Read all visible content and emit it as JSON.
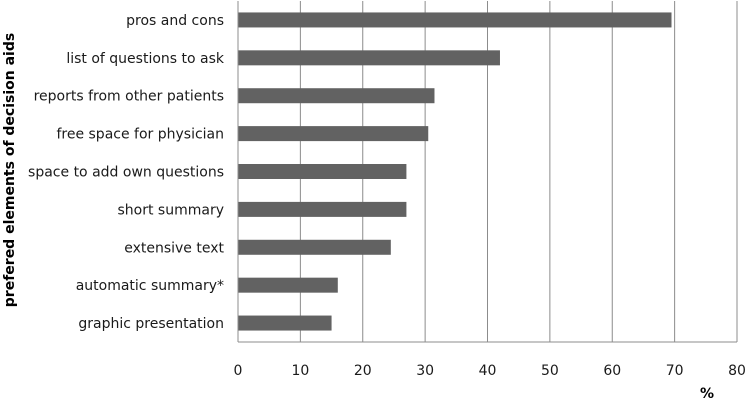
{
  "chart_data": {
    "type": "bar",
    "orientation": "horizontal",
    "categories": [
      "pros and cons",
      "list of questions to ask",
      "reports from other patients",
      "free space for physician",
      "space to add own questions",
      "short summary",
      "extensive text",
      "automatic summary*",
      "graphic presentation"
    ],
    "values": [
      69.5,
      42,
      31.5,
      30.5,
      27,
      27,
      24.5,
      16,
      15
    ],
    "xlabel": "%",
    "ylabel": "prefered elements of decision aids",
    "xlim": [
      0,
      80
    ],
    "xticks": [
      "0",
      "10",
      "20",
      "30",
      "40",
      "50",
      "60",
      "70",
      "80"
    ],
    "grid": "vertical",
    "bar_color": "#626262",
    "grid_color": "#8c8c8c"
  }
}
